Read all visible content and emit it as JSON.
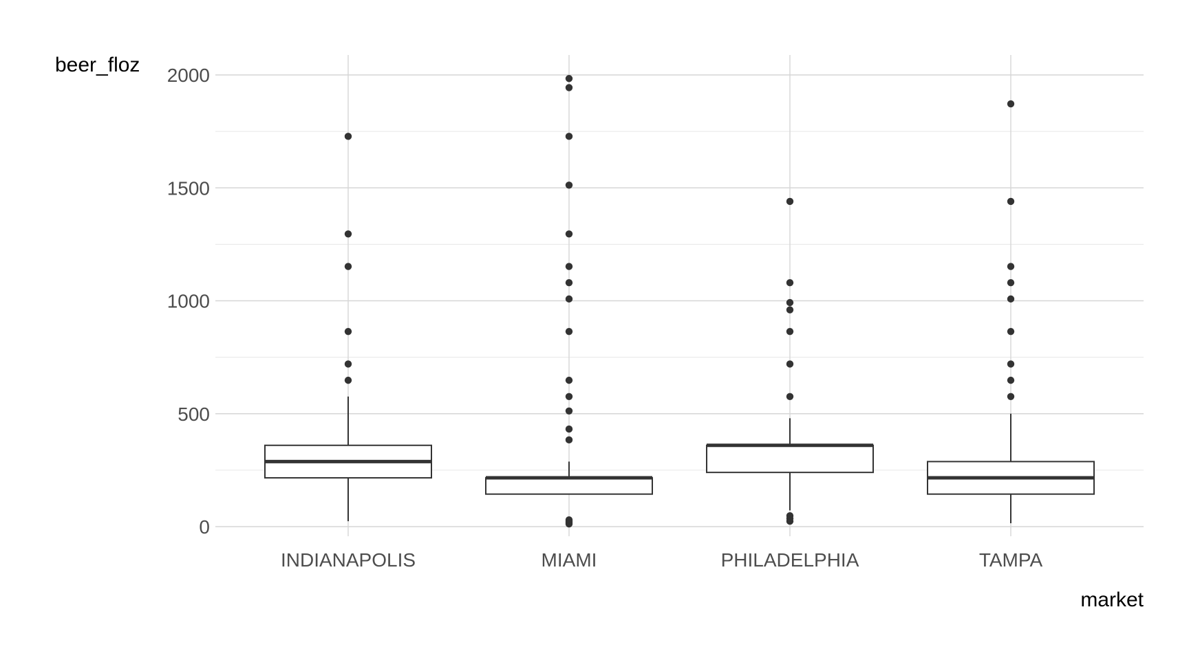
{
  "chart_data": {
    "type": "boxplot",
    "xlabel": "market",
    "ylabel": "beer_floz",
    "ylim": [
      0,
      2000
    ],
    "y_ticks": [
      0,
      500,
      1000,
      1500,
      2000
    ],
    "y_minor_ticks": [
      250,
      750,
      1250,
      1750
    ],
    "grid": true,
    "categories": [
      "INDIANAPOLIS",
      "MIAMI",
      "PHILADELPHIA",
      "TAMPA"
    ],
    "boxes": [
      {
        "category": "INDIANAPOLIS",
        "whisker_low": 24,
        "q1": 216,
        "median": 288,
        "q3": 360,
        "whisker_high": 576,
        "outliers": [
          648,
          720,
          864,
          1152,
          1296,
          1728
        ]
      },
      {
        "category": "MIAMI",
        "whisker_low": 144,
        "q1": 144,
        "median": 216,
        "q3": 216,
        "whisker_high": 288,
        "outliers": [
          12,
          18,
          24,
          30,
          384,
          432,
          512,
          576,
          648,
          864,
          1008,
          1080,
          1152,
          1296,
          1512,
          1728,
          1944,
          1984
        ]
      },
      {
        "category": "PHILADELPHIA",
        "whisker_low": 72,
        "q1": 240,
        "median": 360,
        "q3": 360,
        "whisker_high": 480,
        "outliers": [
          24,
          36,
          48,
          576,
          720,
          864,
          960,
          992,
          1080,
          1440
        ]
      },
      {
        "category": "TAMPA",
        "whisker_low": 15,
        "q1": 144,
        "median": 216,
        "q3": 288,
        "whisker_high": 500,
        "outliers": [
          576,
          648,
          720,
          864,
          1008,
          1080,
          1152,
          1440,
          1872
        ]
      }
    ]
  }
}
